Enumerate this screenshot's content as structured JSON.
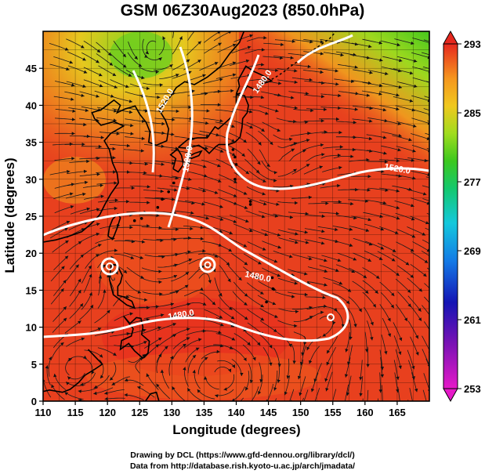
{
  "title": "GSM 06Z30Aug2023 (850.0hPa)",
  "credits": {
    "line1": "Drawing by DCL (https://www.gfd-dennou.org/library/dcl/)",
    "line2": "Data from http://database.rish.kyoto-u.ac.jp/arch/jmadata/"
  },
  "axes": {
    "xlabel": "Longitude (degrees)",
    "ylabel": "Latitude  (degrees)",
    "xlim": [
      110,
      170
    ],
    "ylim": [
      0,
      50
    ],
    "xticks": [
      110,
      115,
      120,
      125,
      130,
      135,
      140,
      145,
      150,
      155,
      160,
      165
    ],
    "yticks": [
      0,
      5,
      10,
      15,
      20,
      25,
      30,
      35,
      40,
      45
    ]
  },
  "colorbar": {
    "ticks": [
      293,
      285,
      277,
      269,
      261,
      253
    ],
    "min": 253,
    "max": 293
  },
  "contour_labels": [
    "1480.0",
    "1520.0",
    "1520.0",
    "1520.0",
    "1480.0",
    "1480.0"
  ],
  "colors": {
    "warm": "#e8321e",
    "mid": "#f5a020",
    "cool": "#3cc81e"
  }
}
